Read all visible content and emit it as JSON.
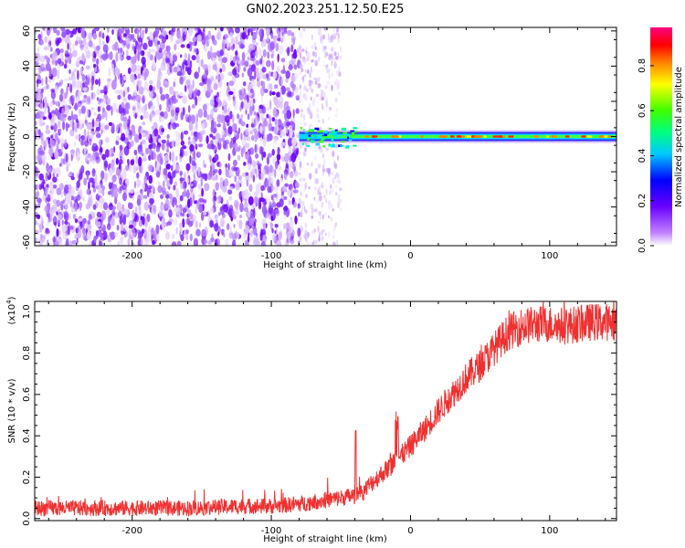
{
  "title": "GN02.2023.251.12.50.E25",
  "chart_data": [
    {
      "type": "heatmap",
      "title": "GN02.2023.251.12.50.E25",
      "xlabel": "Height of straight line (km)",
      "ylabel": "Frequency (Hz)",
      "xlim": [
        -270,
        148
      ],
      "ylim": [
        -62,
        62
      ],
      "xticks": [
        -200,
        -100,
        0,
        100
      ],
      "yticks": [
        60,
        40,
        20,
        0,
        -20,
        -40,
        -60
      ],
      "colorbar": {
        "label": "Normalized spectral amplitude",
        "range": [
          0,
          0.97
        ],
        "ticks": [
          0.0,
          0.2,
          0.4,
          0.6,
          0.8
        ],
        "colormap": "rainbow (white-purple-blue-cyan-green-yellow-red-magenta)"
      },
      "description_values": {
        "noise_region_x": [
          -270,
          -80
        ],
        "sparse_noise_x": [
          -80,
          -50
        ],
        "signal_band_x": [
          -80,
          148
        ],
        "signal_band_frequency": 0,
        "noise_amplitude_approx": 0.2,
        "signal_peak_amplitude_approx": 0.9
      },
      "grid": false
    },
    {
      "type": "line",
      "xlabel": "Height of straight line (km)",
      "ylabel": "SNR (10 * v/v)",
      "yscale_label": "(x10^4)",
      "xlim": [
        -270,
        148
      ],
      "ylim": [
        -0.01,
        1.05
      ],
      "xticks": [
        -200,
        -100,
        0,
        100
      ],
      "yticks": [
        0.0,
        0.2,
        0.4,
        0.6,
        0.8,
        1.0
      ],
      "series": [
        {
          "color": "#f03030",
          "x": [
            -270,
            -240,
            -200,
            -160,
            -120,
            -100,
            -80,
            -70,
            -60,
            -50,
            -40,
            -35,
            -30,
            -20,
            -10,
            0,
            10,
            20,
            30,
            40,
            50,
            60,
            70,
            80,
            90,
            100,
            110,
            120,
            130,
            140,
            148
          ],
          "values": [
            0.05,
            0.05,
            0.05,
            0.05,
            0.06,
            0.06,
            0.07,
            0.08,
            0.09,
            0.1,
            0.11,
            0.12,
            0.16,
            0.22,
            0.28,
            0.35,
            0.43,
            0.52,
            0.6,
            0.68,
            0.74,
            0.82,
            0.9,
            0.93,
            0.94,
            0.94,
            0.93,
            0.94,
            0.95,
            0.95,
            0.95
          ]
        }
      ],
      "grid": false
    }
  ]
}
